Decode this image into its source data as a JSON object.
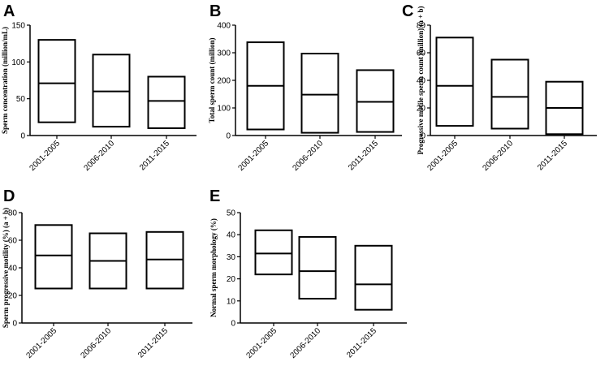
{
  "chart_data": [
    {
      "panel": "A",
      "type": "box",
      "ylabel": "Sperm concentration (million/mL)",
      "ylim": [
        0,
        150
      ],
      "yticks": [
        0,
        50,
        100,
        150
      ],
      "categories": [
        "2001-2005",
        "2006-2010",
        "2011-2015"
      ],
      "boxes": [
        {
          "low": 18,
          "median": 71,
          "high": 130
        },
        {
          "low": 12,
          "median": 60,
          "high": 110
        },
        {
          "low": 10,
          "median": 47,
          "high": 80
        }
      ]
    },
    {
      "panel": "B",
      "type": "box",
      "ylabel": "Total sperm count (million)",
      "ylim": [
        0,
        400
      ],
      "yticks": [
        0,
        100,
        200,
        300,
        400
      ],
      "categories": [
        "2001-2005",
        "2006-2010",
        "2011-2015"
      ],
      "boxes": [
        {
          "low": 22,
          "median": 180,
          "high": 338
        },
        {
          "low": 10,
          "median": 148,
          "high": 297
        },
        {
          "low": 13,
          "median": 122,
          "high": 237
        }
      ]
    },
    {
      "panel": "C",
      "type": "box",
      "ylabel": "Progressive motile sperm count (million) (a + b)",
      "ylim": [
        0,
        80
      ],
      "yticks": [
        0,
        20,
        40,
        60,
        80
      ],
      "categories": [
        "2001-2005",
        "2006-2010",
        "2011-2015"
      ],
      "boxes": [
        {
          "low": 7,
          "median": 36,
          "high": 71
        },
        {
          "low": 5,
          "median": 28,
          "high": 55
        },
        {
          "low": 1,
          "median": 20,
          "high": 39
        }
      ]
    },
    {
      "panel": "D",
      "type": "box",
      "ylabel": "Sperm progressive motility (%) (a + b)",
      "ylim": [
        0,
        80
      ],
      "yticks": [
        0,
        20,
        40,
        60,
        80
      ],
      "categories": [
        "2001-2005",
        "2006-2010",
        "2011-2015"
      ],
      "boxes": [
        {
          "low": 25,
          "median": 49,
          "high": 71
        },
        {
          "low": 25,
          "median": 45,
          "high": 65
        },
        {
          "low": 25,
          "median": 46,
          "high": 66
        }
      ]
    },
    {
      "panel": "E",
      "type": "box",
      "ylabel": "Normal sperm morphology (%)",
      "ylim": [
        0,
        50
      ],
      "yticks": [
        0,
        10,
        20,
        30,
        40,
        50
      ],
      "categories": [
        "2001-2005",
        "2006-2010",
        "2011-2015"
      ],
      "boxes": [
        {
          "low": 22,
          "median": 31.5,
          "high": 42
        },
        {
          "low": 11,
          "median": 23.5,
          "high": 39
        },
        {
          "low": 6,
          "median": 17.5,
          "high": 35
        }
      ]
    }
  ],
  "colors": {
    "stroke": "#000000",
    "background": "#ffffff"
  }
}
